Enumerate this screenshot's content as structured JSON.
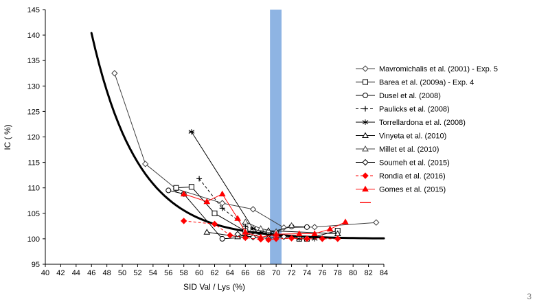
{
  "page": {
    "number_label": "3"
  },
  "chart_data": {
    "type": "scatter",
    "title": "",
    "xlabel": "SID Val / Lys (%)",
    "ylabel": "IC ( %)",
    "xlim": [
      40,
      84
    ],
    "ylim": [
      95,
      145
    ],
    "x_ticks": [
      40,
      42,
      44,
      46,
      48,
      50,
      52,
      54,
      56,
      58,
      60,
      62,
      64,
      66,
      68,
      70,
      72,
      74,
      76,
      78,
      80,
      82,
      84
    ],
    "y_ticks": [
      95,
      100,
      105,
      110,
      115,
      120,
      125,
      130,
      135,
      140,
      145
    ],
    "grid": false,
    "legend_position": "right",
    "highlight_band": {
      "x_from": 69.2,
      "x_to": 70.7,
      "color": "#8EB4E3"
    },
    "fit_curve": {
      "type": "exponential-plateau",
      "plateau": 100,
      "amplitude": 40.4,
      "rate": 0.165,
      "x_start": 46,
      "x_end": 84,
      "color": "#000000",
      "width": 3
    },
    "legend_extra_dash": {
      "color": "#FF0000"
    },
    "series": [
      {
        "name": "Mavromichalis et al. (2001) - Exp. 5",
        "marker": "diamond",
        "fill": "open",
        "color": "#404040",
        "line": "solid",
        "points": [
          [
            49,
            132.5
          ],
          [
            53,
            114.7
          ],
          [
            57,
            109.8
          ],
          [
            63,
            107.0
          ],
          [
            67,
            105.8
          ],
          [
            71,
            102.2
          ],
          [
            75,
            102.3
          ],
          [
            83,
            103.2
          ]
        ]
      },
      {
        "name": "Barea et al. (2009a) - Exp. 4",
        "marker": "square",
        "fill": "open",
        "color": "#000000",
        "line": "solid",
        "points": [
          [
            57,
            110.0
          ],
          [
            59,
            110.2
          ],
          [
            62,
            105.0
          ],
          [
            66,
            101.5
          ],
          [
            70,
            101.0
          ],
          [
            73,
            100.0
          ],
          [
            74,
            100.0
          ],
          [
            78,
            101.6
          ]
        ]
      },
      {
        "name": "Dusel et al. (2008)",
        "marker": "circle",
        "fill": "open",
        "color": "#000000",
        "line": "solid",
        "points": [
          [
            56,
            109.5
          ],
          [
            58,
            108.8
          ],
          [
            63,
            100.0
          ],
          [
            66,
            100.3
          ],
          [
            69,
            101.2
          ],
          [
            72,
            102.4
          ],
          [
            74,
            102.3
          ]
        ]
      },
      {
        "name": "Paulicks et al. (2008)",
        "marker": "plus",
        "fill": "open",
        "color": "#000000",
        "line": "dashed",
        "points": [
          [
            60,
            111.8
          ],
          [
            63,
            106.0
          ],
          [
            66,
            102.5
          ],
          [
            68,
            101.0
          ],
          [
            70,
            100.8
          ]
        ]
      },
      {
        "name": "Torrellardona et al. (2008)",
        "marker": "asterisk",
        "fill": "open",
        "color": "#000000",
        "line": "solid",
        "points": [
          [
            59,
            121.0
          ],
          [
            67,
            102.0
          ],
          [
            69,
            100.8
          ],
          [
            73,
            100.0
          ],
          [
            74,
            100.0
          ],
          [
            75,
            100.0
          ]
        ]
      },
      {
        "name": "Vinyeta et al. (2010)",
        "marker": "triangle",
        "fill": "open",
        "color": "#000000",
        "line": "solid",
        "points": [
          [
            61,
            101.3
          ],
          [
            65,
            100.4
          ],
          [
            69,
            101.6
          ],
          [
            78,
            101.0
          ]
        ]
      },
      {
        "name": "Millet et al. (2010)",
        "marker": "triangle",
        "fill": "open",
        "color": "#404040",
        "line": "solid",
        "points": [
          [
            66,
            103.3
          ],
          [
            68,
            102.0
          ],
          [
            70,
            101.4
          ],
          [
            72,
            102.6
          ]
        ]
      },
      {
        "name": "Soumeh et al. (2015)",
        "marker": "diamond",
        "fill": "open",
        "color": "#000000",
        "line": "solid",
        "points": [
          [
            65,
            100.9
          ],
          [
            67,
            100.3
          ],
          [
            69,
            100.1
          ],
          [
            71,
            100.4
          ]
        ]
      },
      {
        "name": "Rondia et al. (2016)",
        "marker": "diamond",
        "fill": "filled",
        "color": "#FF0000",
        "line": "dashed",
        "points": [
          [
            58,
            103.5
          ],
          [
            62,
            102.9
          ],
          [
            64,
            100.7
          ],
          [
            66,
            100.2
          ],
          [
            68,
            99.9
          ],
          [
            69,
            99.8
          ],
          [
            70,
            100.0
          ],
          [
            72,
            100.1
          ],
          [
            74,
            100.0
          ],
          [
            76,
            100.0
          ],
          [
            78,
            100.0
          ]
        ]
      },
      {
        "name": "Gomes et al. (2015)",
        "marker": "triangle",
        "fill": "filled",
        "color": "#FF0000",
        "line": "solid",
        "points": [
          [
            58,
            108.8
          ],
          [
            61,
            107.3
          ],
          [
            63,
            108.8
          ],
          [
            65,
            104.0
          ],
          [
            66,
            101.3
          ],
          [
            68,
            100.3
          ],
          [
            70,
            100.9
          ],
          [
            73,
            101.0
          ],
          [
            75,
            101.0
          ],
          [
            77,
            101.9
          ],
          [
            79,
            103.3
          ]
        ]
      }
    ]
  }
}
